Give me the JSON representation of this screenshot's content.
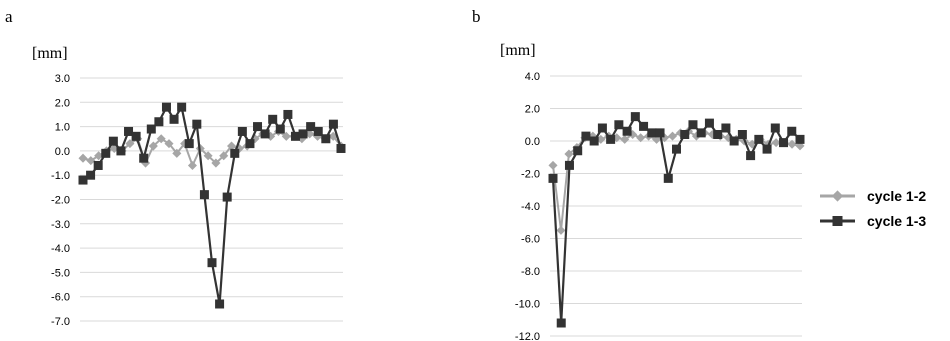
{
  "legend": [
    {
      "name": "cycle 1-2",
      "color": "#a6a6a6",
      "marker": "diamond"
    },
    {
      "name": "cycle 1-3",
      "color": "#333333",
      "marker": "square"
    }
  ],
  "chart_data": [
    {
      "panel": "a",
      "type": "line",
      "ylabel": "[mm]",
      "ylim": [
        -7,
        3
      ],
      "yticks": [
        "3.0",
        "2.0",
        "1.0",
        "0.0",
        "-1.0",
        "-2.0",
        "-3.0",
        "-4.0",
        "-5.0",
        "-6.0",
        "-7.0"
      ],
      "ytick_values": [
        3,
        2,
        1,
        0,
        -1,
        -2,
        -3,
        -4,
        -5,
        -6,
        -7
      ],
      "grid": true,
      "series": [
        {
          "name": "cycle 1-2",
          "values": [
            -0.3,
            -0.4,
            -0.2,
            0.0,
            0.1,
            0.0,
            0.3,
            0.5,
            -0.5,
            0.2,
            0.5,
            0.3,
            -0.1,
            0.3,
            -0.6,
            0.1,
            -0.2,
            -0.5,
            -0.2,
            0.2,
            0.1,
            0.2,
            0.5,
            0.7,
            0.6,
            0.8,
            0.6,
            0.6,
            0.5,
            0.7,
            0.6,
            0.5,
            0.6,
            0.2
          ]
        },
        {
          "name": "cycle 1-3",
          "values": [
            -1.2,
            -1.0,
            -0.6,
            -0.1,
            0.4,
            0.0,
            0.8,
            0.6,
            -0.3,
            0.9,
            1.2,
            1.8,
            1.3,
            1.8,
            0.3,
            1.1,
            -1.8,
            -4.6,
            -6.3,
            -1.9,
            -0.1,
            0.8,
            0.3,
            1.0,
            0.7,
            1.3,
            0.9,
            1.5,
            0.6,
            0.7,
            1.0,
            0.8,
            0.5,
            1.1,
            0.1
          ]
        }
      ]
    },
    {
      "panel": "b",
      "type": "line",
      "ylabel": "[mm]",
      "ylim": [
        -12,
        4
      ],
      "yticks": [
        "4.0",
        "2.0",
        "0.0",
        "-2.0",
        "-4.0",
        "-6.0",
        "-8.0",
        "-10.0",
        "-12.0"
      ],
      "ytick_values": [
        4,
        2,
        0,
        -2,
        -4,
        -6,
        -8,
        -10,
        -12
      ],
      "grid": true,
      "series": [
        {
          "name": "cycle 1-2",
          "values": [
            -1.5,
            -5.5,
            -0.8,
            -0.4,
            0.2,
            0.3,
            0.1,
            0.3,
            0.2,
            0.1,
            0.4,
            0.2,
            0.3,
            0.1,
            0.2,
            0.3,
            0.5,
            0.6,
            0.3,
            0.5,
            0.4,
            0.3,
            0.2,
            0.1,
            0.0,
            -0.2,
            0.1,
            -0.2,
            -0.1,
            -0.1,
            -0.2,
            -0.3
          ]
        },
        {
          "name": "cycle 1-3",
          "values": [
            -2.3,
            -11.2,
            -1.5,
            -0.6,
            0.3,
            0.0,
            0.8,
            0.1,
            1.0,
            0.6,
            1.5,
            0.9,
            0.5,
            0.5,
            -2.3,
            -0.5,
            0.4,
            1.0,
            0.5,
            1.1,
            0.4,
            0.8,
            0.0,
            0.4,
            -0.9,
            0.1,
            -0.5,
            0.8,
            -0.1,
            0.6,
            0.1
          ]
        }
      ]
    }
  ]
}
